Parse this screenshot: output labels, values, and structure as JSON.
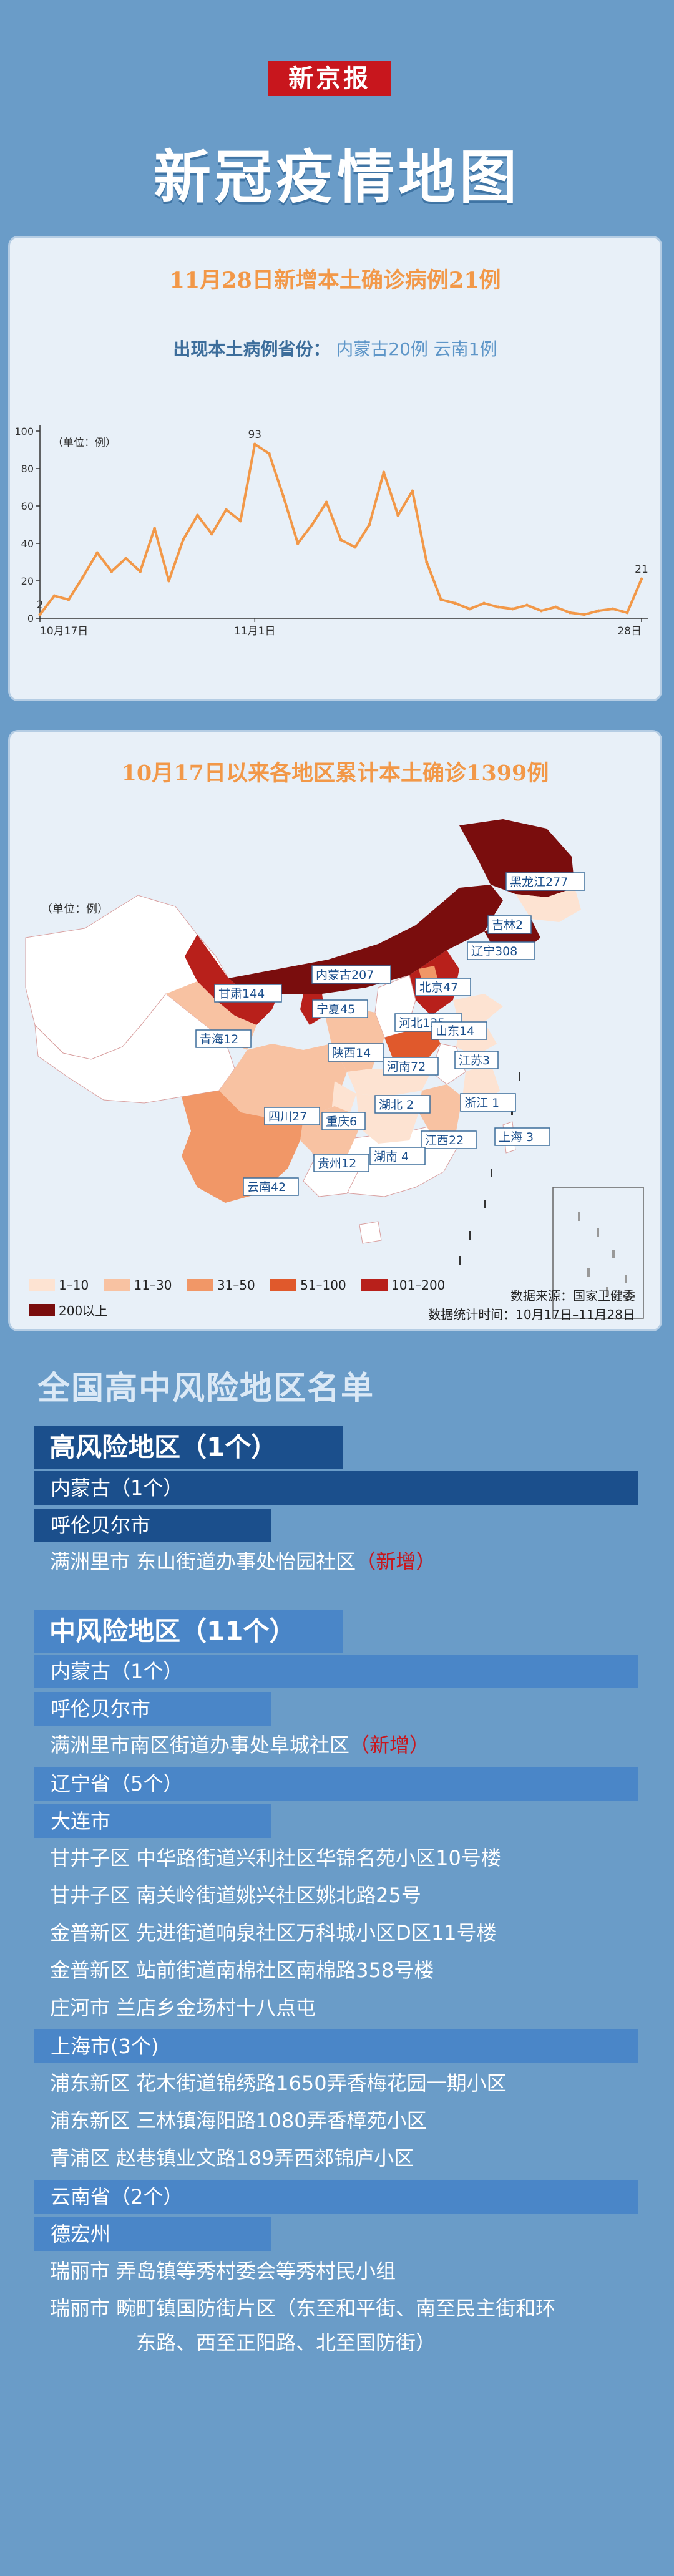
{
  "brand": "新京报",
  "title": "新冠疫情地图",
  "card1": {
    "title": "11月28日新增本土确诊病例21例",
    "sub_label": "出现本土病例省份：",
    "sub_value": "内蒙古20例  云南1例"
  },
  "chart_data": {
    "type": "line",
    "unit_label": "（单位：例）",
    "y_ticks": [
      0,
      20,
      40,
      60,
      80,
      100
    ],
    "ylim": [
      0,
      100
    ],
    "x_tick_labels": [
      "10月17日",
      "11月1日",
      "28日"
    ],
    "x_tick_positions": [
      0,
      15,
      42
    ],
    "values": [
      2,
      12,
      10,
      22,
      35,
      25,
      32,
      25,
      48,
      20,
      42,
      55,
      45,
      58,
      52,
      93,
      88,
      65,
      40,
      50,
      62,
      42,
      38,
      50,
      78,
      55,
      68,
      30,
      10,
      8,
      5,
      8,
      6,
      5,
      7,
      4,
      6,
      3,
      2,
      4,
      5,
      3,
      21
    ],
    "annotations": [
      {
        "x": 0,
        "y": 2,
        "text": "2"
      },
      {
        "x": 15,
        "y": 93,
        "text": "93"
      },
      {
        "x": 42,
        "y": 21,
        "text": "21"
      }
    ],
    "color": "#f29848"
  },
  "card2": {
    "title": "10月17日以来各地区累计本土确诊1399例",
    "unit": "（单位：例）",
    "source": "数据来源：国家卫健委",
    "period": "数据统计时间：10月17日–11月28日"
  },
  "map_labels": [
    {
      "name": "黑龙江277"
    },
    {
      "name": "吉林2"
    },
    {
      "name": "辽宁308"
    },
    {
      "name": "内蒙古207"
    },
    {
      "name": "北京47"
    },
    {
      "name": "甘肃144"
    },
    {
      "name": "宁夏45"
    },
    {
      "name": "河北135"
    },
    {
      "name": "山东14"
    },
    {
      "name": "青海12"
    },
    {
      "name": "陕西14"
    },
    {
      "name": "江苏3"
    },
    {
      "name": "河南72"
    },
    {
      "name": "湖北 2"
    },
    {
      "name": "浙江 1"
    },
    {
      "name": "四川27"
    },
    {
      "name": "重庆6"
    },
    {
      "name": "上海 3"
    },
    {
      "name": "江西22"
    },
    {
      "name": "贵州12"
    },
    {
      "name": "湖南 4"
    },
    {
      "name": "云南42"
    }
  ],
  "legend": [
    {
      "label": "1–10",
      "color": "#fde3d2"
    },
    {
      "label": "11–30",
      "color": "#f8c2a2"
    },
    {
      "label": "31–50",
      "color": "#f19767"
    },
    {
      "label": "51–100",
      "color": "#e0592c"
    },
    {
      "label": "101–200",
      "color": "#b8201b"
    },
    {
      "label": "200以上",
      "color": "#7a0d0d"
    }
  ],
  "risk": {
    "list_title": "全国高中风险地区名单",
    "high": {
      "header": "高风险地区（1个）",
      "province": "内蒙古（1个）",
      "city": "呼伦贝尔市",
      "item": "满洲里市 东山街道办事处怡园社区",
      "item_new": "（新增）"
    },
    "mid": {
      "header": "中风险地区（11个）",
      "nm_province": "内蒙古（1个）",
      "nm_city": "呼伦贝尔市",
      "nm_item": "满洲里市南区街道办事处阜城社区",
      "nm_new": "（新增）",
      "ln_province": "辽宁省（5个）",
      "ln_city": "大连市",
      "ln_items": [
        "甘井子区 中华路街道兴利社区华锦名苑小区10号楼",
        "甘井子区 南关岭街道姚兴社区姚北路25号",
        "金普新区 先进街道响泉社区万科城小区D区11号楼",
        "金普新区 站前街道南棉社区南棉路358号楼",
        "庄河市 兰店乡金场村十八点屯"
      ],
      "sh_province": "上海市(3个)",
      "sh_items": [
        "浦东新区 花木街道锦绣路1650弄香梅花园一期小区",
        "浦东新区 三林镇海阳路1080弄香樟苑小区",
        "青浦区 赵巷镇业文路189弄西郊锦庐小区"
      ],
      "yn_province": "云南省（2个）",
      "yn_city": "德宏州",
      "yn_item1": "瑞丽市 弄岛镇等秀村委会等秀村民小组",
      "yn_item2a": "瑞丽市 畹町镇国防街片区（东至和平街、南至民主街和环",
      "yn_item2b": "东路、西至正阳路、北至国防街）"
    }
  }
}
